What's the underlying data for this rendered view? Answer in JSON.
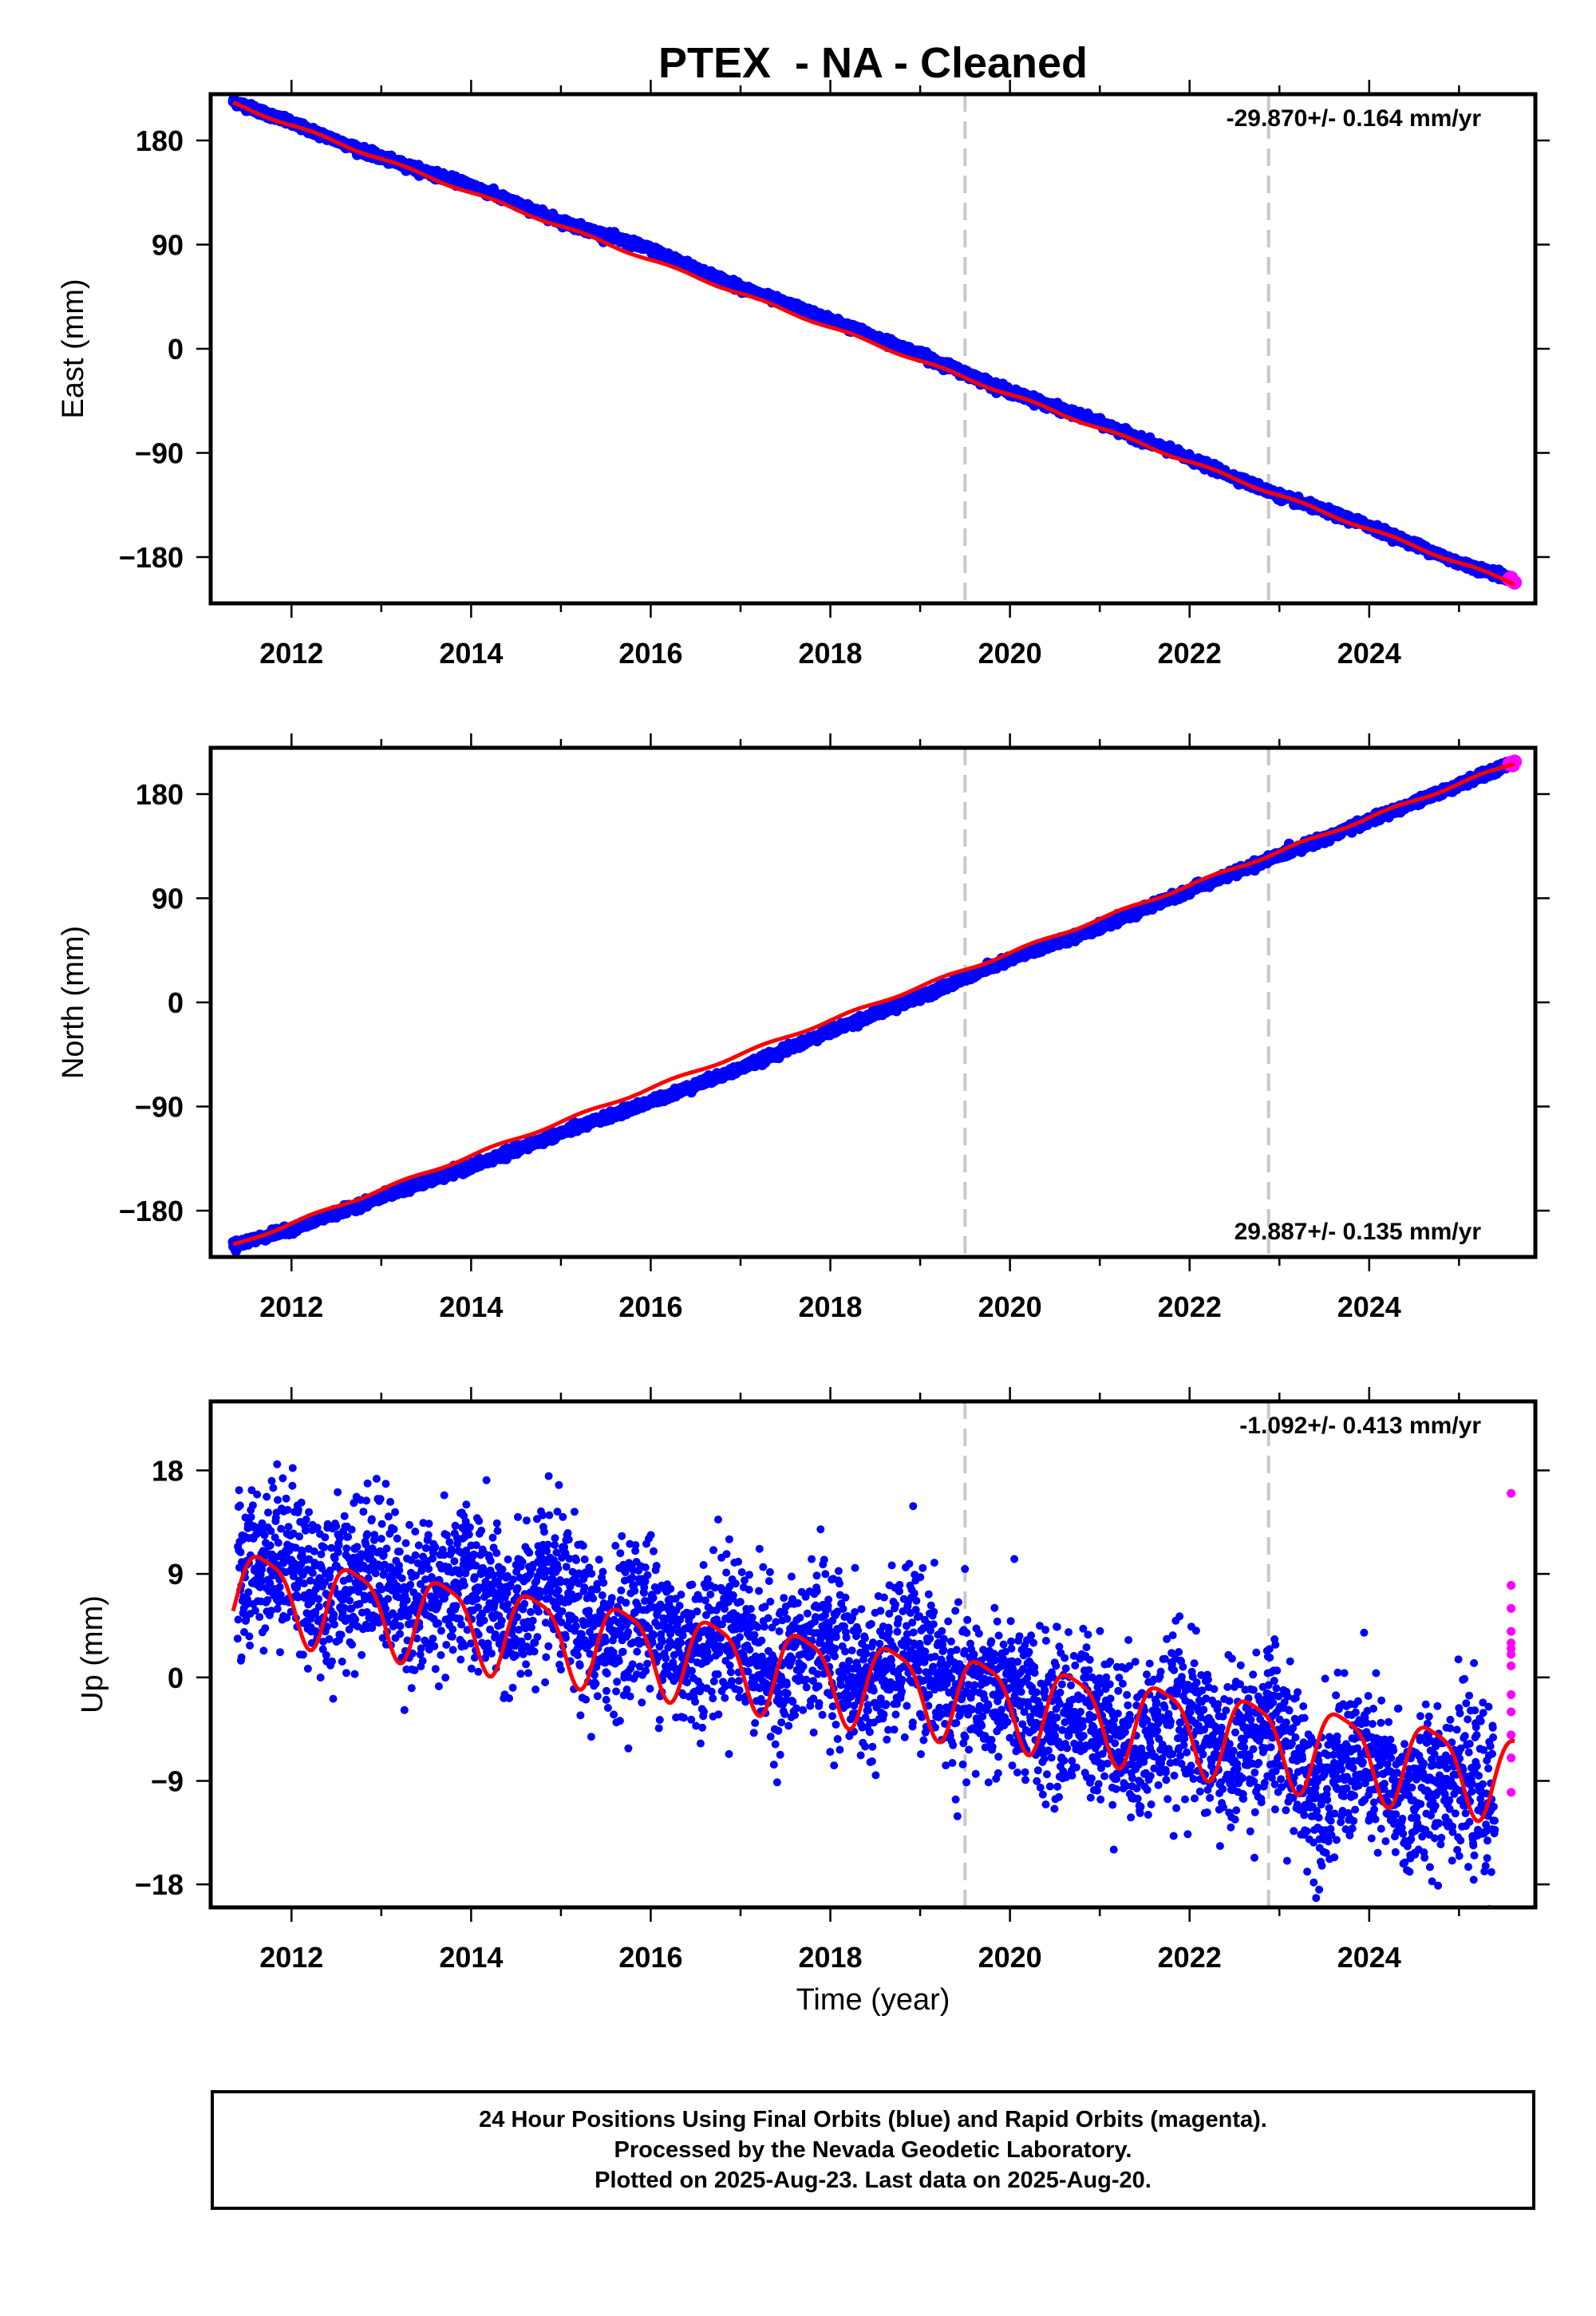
{
  "title": "PTEX  - NA - Cleaned",
  "xlabel": "Time (year)",
  "colors": {
    "final": "#0000ff",
    "rapid": "#ff00ff",
    "model": "#ff0000",
    "step": "#c8c8c8"
  },
  "footer": [
    "24 Hour Positions Using Final Orbits (blue) and Rapid Orbits (magenta).",
    "Processed by the Nevada Geodetic Laboratory.",
    "Plotted on 2025-Aug-23. Last data on 2025-Aug-20."
  ],
  "chart_data": [
    {
      "type": "scatter",
      "component": "east",
      "ylabel": "East (mm)",
      "rate_label": "-29.870+/- 0.164 mm/yr",
      "rate_position": "top-right",
      "xlim": [
        2011.1,
        2025.85
      ],
      "ylim": [
        -220,
        220
      ],
      "xticks": [
        2012,
        2014,
        2016,
        2018,
        2020,
        2022,
        2024
      ],
      "yticks": [
        -180,
        -90,
        0,
        90,
        180
      ],
      "ytick_labels": [
        "−180",
        "−90",
        "0",
        "90",
        "180"
      ],
      "step_epochs": [
        2019.5,
        2022.88
      ],
      "final_series": {
        "x": [
          2011.35,
          2012.0,
          2013.0,
          2014.0,
          2015.0,
          2016.0,
          2017.0,
          2018.0,
          2019.0,
          2020.0,
          2021.0,
          2022.0,
          2023.0,
          2024.0,
          2025.0,
          2025.55
        ],
        "y": [
          214,
          195,
          165,
          141,
          110,
          86,
          53,
          25,
          -5,
          -37,
          -64,
          -95,
          -127,
          -153,
          -185,
          -198
        ]
      },
      "rapid_series": {
        "x": [
          2025.56,
          2025.58,
          2025.6,
          2025.62
        ],
        "y": [
          -199,
          -198,
          -201,
          -202
        ]
      },
      "model": {
        "x": [
          2011.35,
          2025.62
        ],
        "y": [
          212,
          -203
        ]
      }
    },
    {
      "type": "scatter",
      "component": "north",
      "ylabel": "North (mm)",
      "rate_label": "29.887+/- 0.135 mm/yr",
      "rate_position": "bottom-right",
      "xlim": [
        2011.1,
        2025.85
      ],
      "ylim": [
        -220,
        220
      ],
      "xticks": [
        2012,
        2014,
        2016,
        2018,
        2020,
        2022,
        2024
      ],
      "yticks": [
        -180,
        -90,
        0,
        90,
        180
      ],
      "ytick_labels": [
        "−180",
        "−90",
        "0",
        "90",
        "180"
      ],
      "step_epochs": [
        2019.5,
        2022.88
      ],
      "final_series": {
        "x": [
          2011.35,
          2012.0,
          2013.0,
          2014.0,
          2015.0,
          2016.0,
          2017.0,
          2018.0,
          2019.0,
          2020.0,
          2021.0,
          2022.0,
          2023.0,
          2024.0,
          2025.0,
          2025.55
        ],
        "y": [
          -210,
          -196,
          -168,
          -142,
          -113,
          -86,
          -57,
          -25,
          5,
          37,
          65,
          97,
          127,
          157,
          188,
          205
        ]
      },
      "rapid_series": {
        "x": [
          2025.56,
          2025.58,
          2025.6,
          2025.62
        ],
        "y": [
          206,
          207,
          205,
          208
        ]
      },
      "model": {
        "x": [
          2011.35,
          2025.62
        ],
        "y": [
          -210,
          207
        ]
      }
    },
    {
      "type": "scatter",
      "component": "up",
      "ylabel": "Up (mm)",
      "rate_label": "-1.092+/- 0.413 mm/yr",
      "rate_position": "top-right",
      "xlim": [
        2011.1,
        2025.85
      ],
      "ylim": [
        -20,
        24
      ],
      "xticks": [
        2012,
        2014,
        2016,
        2018,
        2020,
        2022,
        2024
      ],
      "yticks": [
        -18,
        -9,
        0,
        9,
        18
      ],
      "ytick_labels": [
        "−18",
        "−9",
        "0",
        "9",
        "18"
      ],
      "step_epochs": [
        2019.5,
        2022.88
      ],
      "final_series": {
        "x": [
          2011.4,
          2011.9,
          2012.4,
          2012.9,
          2013.4,
          2013.9,
          2014.4,
          2014.9,
          2015.4,
          2015.9,
          2016.4,
          2016.9,
          2017.4,
          2017.9,
          2018.4,
          2018.9,
          2019.4,
          2019.9,
          2020.4,
          2020.9,
          2021.4,
          2021.9,
          2022.4,
          2022.9,
          2023.4,
          2023.9,
          2024.4,
          2024.9,
          2025.4
        ],
        "y": [
          9,
          11,
          7,
          10,
          6,
          9,
          5,
          8,
          3,
          6,
          2,
          5,
          0,
          4,
          -1,
          3,
          -2,
          -1,
          -4,
          -3,
          -6,
          -3,
          -7,
          -4,
          -10,
          -7,
          -11,
          -8,
          -11
        ]
      },
      "rapid_series": {
        "x": [
          2025.58,
          2025.58,
          2025.58,
          2025.58,
          2025.58,
          2025.58,
          2025.58,
          2025.58,
          2025.58,
          2025.58,
          2025.58,
          2025.58,
          2025.58
        ],
        "y": [
          16,
          8,
          6,
          4,
          3,
          2.5,
          2,
          1,
          -1.5,
          -3,
          -5,
          -7,
          -10
        ]
      },
      "model": {
        "x": [
          2011.35,
          2025.62
        ],
        "y": [
          7.8,
          -8.5
        ]
      }
    }
  ]
}
